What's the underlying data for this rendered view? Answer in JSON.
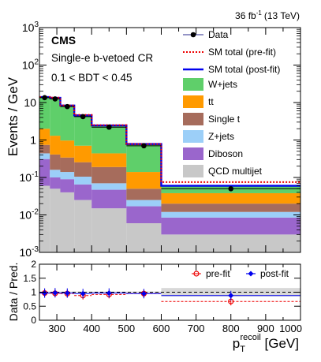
{
  "header": {
    "luminosity": "36 fb",
    "lumi_exp": "-1",
    "energy": "(13 TeV)",
    "experiment": "CMS",
    "region": "Single-e b-vetoed CR",
    "cut": "0.1 < BDT < 0.45"
  },
  "axes": {
    "ylabel_main": "Events / GeV",
    "ylabel_ratio": "Data / Pred.",
    "xlabel_base": "p",
    "xlabel_sub": "T",
    "xlabel_sup": "recoil",
    "xlabel_unit": " [GeV]"
  },
  "legend_main": [
    "Data",
    "SM total (pre-fit)",
    "SM total (post-fit)",
    "W+jets",
    "tt",
    "Single t",
    "Z+jets",
    "Diboson",
    "QCD multijet"
  ],
  "legend_ratio": [
    "pre-fit",
    "post-fit"
  ],
  "colors": {
    "wjets": "#5fcf6a",
    "tt": "#ff9a00",
    "singlet": "#a66c5c",
    "zjets": "#9ccff8",
    "diboson": "#9a66cc",
    "qcd": "#c8c8c8",
    "postfit": "#0000ee",
    "prefit": "#ee0000",
    "data": "#000000"
  },
  "chart_data": [
    {
      "type": "area",
      "title": "",
      "xlabel": "p_T^recoil [GeV]",
      "ylabel": "Events / GeV",
      "log_y": true,
      "xlim": [
        250,
        1000
      ],
      "ylim": [
        0.001,
        1000
      ],
      "bin_edges": [
        250,
        280,
        310,
        350,
        400,
        500,
        600,
        1000
      ],
      "series": [
        {
          "name": "QCD multijet",
          "values": [
            0.06,
            0.05,
            0.04,
            0.025,
            0.015,
            0.006,
            0.003
          ]
        },
        {
          "name": "Diboson",
          "values": [
            0.25,
            0.05,
            0.05,
            0.04,
            0.032,
            0.011,
            0.0055
          ]
        },
        {
          "name": "Z+jets",
          "values": [
            0.13,
            0.06,
            0.05,
            0.04,
            0.023,
            0.008,
            0.0035
          ]
        },
        {
          "name": "Single t",
          "values": [
            0.3,
            0.25,
            0.2,
            0.15,
            0.12,
            0.025,
            0.008
          ]
        },
        {
          "name": "tt",
          "values": [
            1.26,
            0.89,
            0.63,
            0.45,
            0.25,
            0.09,
            0.018
          ]
        },
        {
          "name": "W+jets",
          "values": [
            12,
            12,
            7.3,
            3.8,
            2.0,
            0.63,
            0.022
          ]
        }
      ],
      "sm_total_prefit": [
        14.0,
        13.5,
        8.4,
        4.7,
        2.5,
        0.78,
        0.075
      ],
      "sm_total_postfit": [
        14.0,
        13.3,
        8.3,
        4.55,
        2.44,
        0.78,
        0.06
      ],
      "data": {
        "x": [
          265,
          295,
          330,
          375,
          450,
          550,
          800
        ],
        "y": [
          13.5,
          12.5,
          7.8,
          4.2,
          2.2,
          0.7,
          0.05
        ]
      },
      "legend_placement": "top-right"
    },
    {
      "type": "scatter",
      "title": "",
      "xlabel": "p_T^recoil [GeV]",
      "ylabel": "Data / Pred.",
      "xlim": [
        250,
        1000
      ],
      "ylim": [
        0,
        2
      ],
      "yticks": [
        0,
        0.5,
        1,
        1.5,
        2
      ],
      "xticks": [
        300,
        400,
        500,
        600,
        700,
        800,
        900,
        1000
      ],
      "series": [
        {
          "name": "pre-fit",
          "x": [
            265,
            295,
            330,
            375,
            450,
            550,
            800
          ],
          "y": [
            0.97,
            0.96,
            0.95,
            0.88,
            0.92,
            0.95,
            0.67
          ]
        },
        {
          "name": "post-fit",
          "x": [
            265,
            295,
            330,
            375,
            450,
            550,
            800
          ],
          "y": [
            0.97,
            0.98,
            0.97,
            0.95,
            0.97,
            0.95,
            0.88
          ]
        }
      ],
      "legend_placement": "top-right"
    }
  ]
}
